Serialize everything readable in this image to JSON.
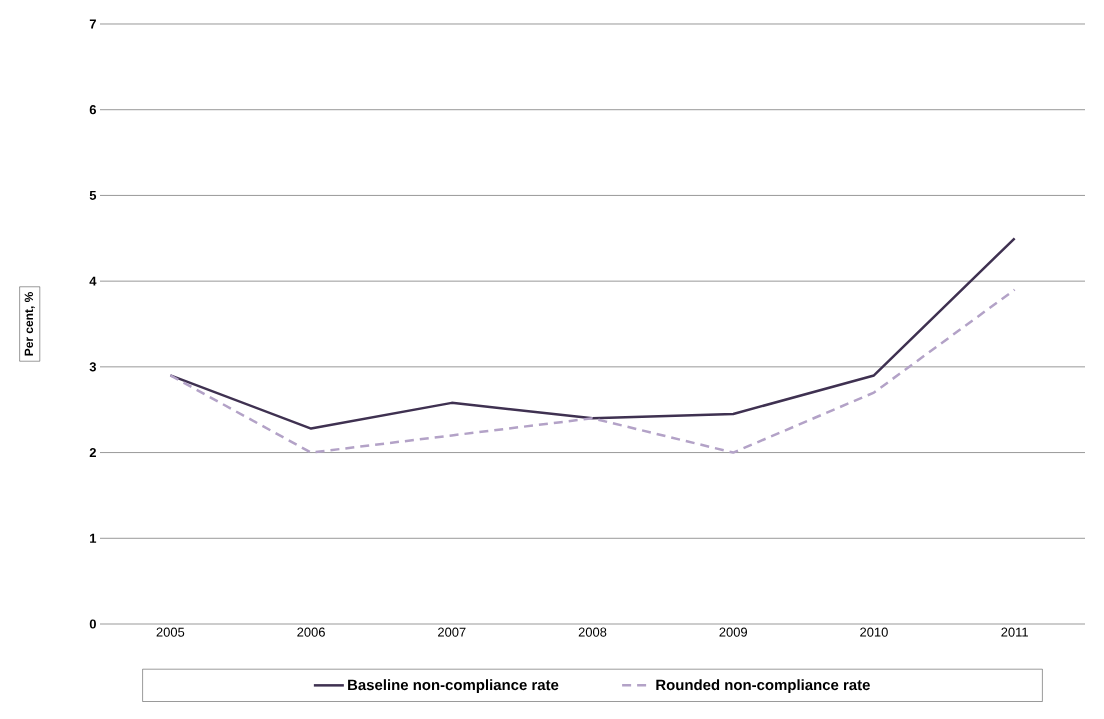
{
  "chart_data": {
    "type": "line",
    "ylabel": "Per cent, %",
    "categories": [
      "2005",
      "2006",
      "2007",
      "2008",
      "2009",
      "2010",
      "2011"
    ],
    "series": [
      {
        "name": "Baseline non-compliance rate",
        "color": "#3f3151",
        "line_style": "solid",
        "values": [
          2.9,
          2.28,
          2.58,
          2.4,
          2.45,
          2.9,
          4.5
        ]
      },
      {
        "name": "Rounded non-compliance rate",
        "color": "#b3a2c7",
        "line_style": "dashed",
        "values": [
          2.9,
          2.0,
          2.2,
          2.4,
          2.0,
          2.7,
          3.9
        ]
      }
    ],
    "ylim": [
      0,
      7
    ],
    "yticks": [
      0,
      1,
      2,
      3,
      4,
      5,
      6,
      7
    ],
    "grid": "y",
    "legend": "bottom",
    "marker": "none"
  }
}
